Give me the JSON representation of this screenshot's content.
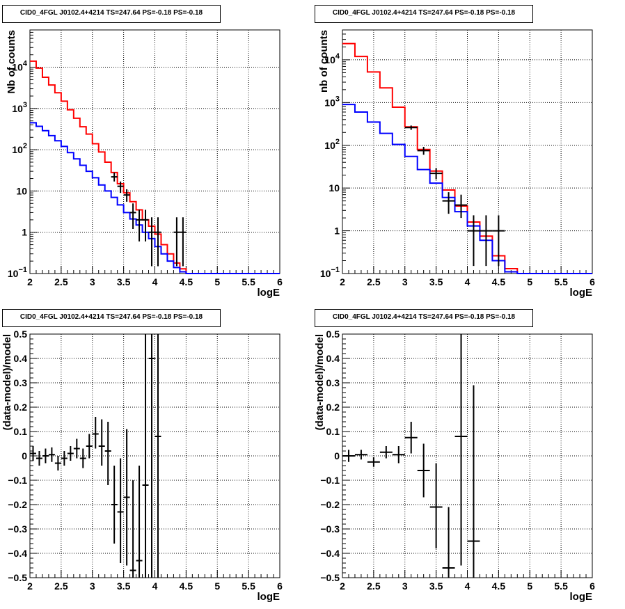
{
  "chart_data": [
    {
      "type": "line",
      "id": "top-left",
      "title": "CID0_4FGL J0102.4+4214 TS=247.64 PS=-0.18 PS=-0.18",
      "xlabel": "logE",
      "ylabel": "Nb of counts",
      "xlim": [
        2,
        6
      ],
      "ylim": [
        0.1,
        80000
      ],
      "yscale": "log",
      "grid": true,
      "xticks": [
        "2",
        "2.5",
        "3",
        "3.5",
        "4",
        "4.5",
        "5",
        "5.5",
        "6"
      ],
      "yticks": [
        {
          "v": 0.1,
          "base": "10",
          "exp": "−1"
        },
        {
          "v": 1,
          "label": "1"
        },
        {
          "v": 10,
          "label": "10"
        },
        {
          "v": 100,
          "base": "10",
          "exp": "2"
        },
        {
          "v": 1000,
          "base": "10",
          "exp": "3"
        },
        {
          "v": 10000,
          "base": "10",
          "exp": "4"
        }
      ],
      "series": [
        {
          "color": "#ff0000",
          "kind": "step",
          "edges": [
            2,
            2.1,
            2.2,
            2.3,
            2.4,
            2.5,
            2.6,
            2.7,
            2.8,
            2.9,
            3.0,
            3.1,
            3.2,
            3.3,
            3.4,
            3.5,
            3.6,
            3.7,
            3.8,
            3.9,
            4.0,
            4.1,
            4.2,
            4.3,
            4.4,
            4.5,
            4.6,
            4.7,
            4.8,
            4.9,
            5.0,
            5.1,
            5.2,
            5.3,
            5.4,
            5.5,
            5.6,
            5.7,
            5.8,
            5.9,
            6.0
          ],
          "values": [
            14000,
            9500,
            5700,
            3700,
            2400,
            1500,
            930,
            580,
            360,
            240,
            140,
            88,
            50,
            28,
            15,
            9,
            5.5,
            3.5,
            2.0,
            1.4,
            0.9,
            0.5,
            0.3,
            0.18,
            0.13,
            0.1,
            0.1,
            0.1,
            0.1,
            0.1,
            0.1,
            0.1,
            0.1,
            0.1,
            0.1,
            0.1,
            0.1,
            0.1,
            0.1,
            0.1
          ]
        },
        {
          "color": "#0000ff",
          "kind": "step",
          "edges": [
            2,
            2.1,
            2.2,
            2.3,
            2.4,
            2.5,
            2.6,
            2.7,
            2.8,
            2.9,
            3.0,
            3.1,
            3.2,
            3.3,
            3.4,
            3.5,
            3.6,
            3.7,
            3.8,
            3.9,
            4.0,
            4.1,
            4.2,
            4.3,
            4.4,
            4.5,
            4.6,
            4.7,
            4.8,
            4.9,
            5.0,
            5.1,
            5.2,
            5.3,
            5.4,
            5.5,
            5.6,
            5.7,
            5.8,
            5.9,
            6.0
          ],
          "values": [
            450,
            370,
            290,
            220,
            165,
            120,
            85,
            60,
            42,
            30,
            21,
            14,
            10,
            7,
            4.6,
            3.0,
            2.1,
            1.5,
            1.0,
            0.7,
            0.45,
            0.3,
            0.2,
            0.14,
            0.11,
            0.1,
            0.1,
            0.1,
            0.1,
            0.1,
            0.1,
            0.1,
            0.1,
            0.1,
            0.1,
            0.1,
            0.1,
            0.1,
            0.1,
            0.1
          ]
        },
        {
          "color": "#000000",
          "kind": "errorbar",
          "points": [
            {
              "x": 3.35,
              "y": 22,
              "lo": 17,
              "hi": 28,
              "xerr": 0.05
            },
            {
              "x": 3.45,
              "y": 13,
              "lo": 9,
              "hi": 17,
              "xerr": 0.05
            },
            {
              "x": 3.55,
              "y": 8,
              "lo": 5.5,
              "hi": 11,
              "xerr": 0.05
            },
            {
              "x": 3.65,
              "y": 3,
              "lo": 1.2,
              "hi": 5,
              "xerr": 0.05
            },
            {
              "x": 3.75,
              "y": 2,
              "lo": 0.6,
              "hi": 3.5,
              "xerr": 0.05
            },
            {
              "x": 3.85,
              "y": 2,
              "lo": 0.6,
              "hi": 3.5,
              "xerr": 0.05
            },
            {
              "x": 3.95,
              "y": 1,
              "lo": 0.15,
              "hi": 2.3,
              "xerr": 0.05
            },
            {
              "x": 4.05,
              "y": 1,
              "lo": 0.15,
              "hi": 2.3,
              "xerr": 0.05
            },
            {
              "x": 4.35,
              "y": 1,
              "lo": 0.15,
              "hi": 2.3,
              "xerr": 0.05
            },
            {
              "x": 4.45,
              "y": 1,
              "lo": 0.15,
              "hi": 2.3,
              "xerr": 0.05
            }
          ]
        }
      ]
    },
    {
      "type": "line",
      "id": "top-right",
      "title": "CID0_4FGL J0102.4+4214 TS=247.64 PS=-0.18 PS=-0.18",
      "xlabel": "logE",
      "ylabel": "nb of counts",
      "xlim": [
        2,
        6
      ],
      "ylim": [
        0.1,
        50000
      ],
      "yscale": "log",
      "grid": true,
      "xticks": [
        "2",
        "2.5",
        "3",
        "3.5",
        "4",
        "4.5",
        "5",
        "5.5",
        "6"
      ],
      "yticks": [
        {
          "v": 0.1,
          "base": "10",
          "exp": "−1"
        },
        {
          "v": 1,
          "label": "1"
        },
        {
          "v": 10,
          "label": "10"
        },
        {
          "v": 100,
          "base": "10",
          "exp": "2"
        },
        {
          "v": 1000,
          "base": "10",
          "exp": "3"
        },
        {
          "v": 10000,
          "base": "10",
          "exp": "4"
        }
      ],
      "series": [
        {
          "color": "#ff0000",
          "kind": "step",
          "edges": [
            2,
            2.2,
            2.4,
            2.6,
            2.8,
            3.0,
            3.2,
            3.4,
            3.6,
            3.8,
            4.0,
            4.2,
            4.4,
            4.6,
            4.8,
            5.0,
            5.2,
            5.4,
            5.6,
            5.8,
            6.0
          ],
          "values": [
            24000,
            12000,
            5200,
            2200,
            780,
            270,
            80,
            25,
            9,
            3.8,
            1.6,
            0.75,
            0.26,
            0.13,
            0.1,
            0.1,
            0.1,
            0.1,
            0.1,
            0.1
          ]
        },
        {
          "color": "#0000ff",
          "kind": "step",
          "edges": [
            2,
            2.2,
            2.4,
            2.6,
            2.8,
            3.0,
            3.2,
            3.4,
            3.6,
            3.8,
            4.0,
            4.2,
            4.4,
            4.6,
            4.8,
            5.0,
            5.2,
            5.4,
            5.6,
            5.8,
            6.0
          ],
          "values": [
            900,
            600,
            350,
            190,
            105,
            55,
            27,
            13,
            6,
            2.8,
            1.3,
            0.6,
            0.2,
            0.11,
            0.1,
            0.1,
            0.1,
            0.1,
            0.1,
            0.1
          ]
        },
        {
          "color": "#000000",
          "kind": "errorbar",
          "points": [
            {
              "x": 3.1,
              "y": 260,
              "lo": 230,
              "hi": 290,
              "xerr": 0.1
            },
            {
              "x": 3.3,
              "y": 75,
              "lo": 60,
              "hi": 92,
              "xerr": 0.1
            },
            {
              "x": 3.5,
              "y": 22,
              "lo": 16,
              "hi": 29,
              "xerr": 0.1
            },
            {
              "x": 3.7,
              "y": 5,
              "lo": 2.5,
              "hi": 8,
              "xerr": 0.1
            },
            {
              "x": 3.9,
              "y": 4,
              "lo": 2,
              "hi": 7,
              "xerr": 0.1
            },
            {
              "x": 4.1,
              "y": 1,
              "lo": 0.15,
              "hi": 2.3,
              "xerr": 0.1
            },
            {
              "x": 4.3,
              "y": 1,
              "lo": 0.15,
              "hi": 2.3,
              "xerr": 0.1
            },
            {
              "x": 4.5,
              "y": 1,
              "lo": 0.15,
              "hi": 2.3,
              "xerr": 0.1
            }
          ]
        }
      ]
    },
    {
      "type": "scatter",
      "id": "bottom-left",
      "title": "CID0_4FGL J0102.4+4214 TS=247.64 PS=-0.18 PS=-0.18",
      "xlabel": "logE",
      "ylabel": "(data-model)/model",
      "xlim": [
        2,
        6
      ],
      "ylim": [
        -0.5,
        0.5
      ],
      "yscale": "linear",
      "grid": true,
      "xticks": [
        "2",
        "2.5",
        "3",
        "3.5",
        "4",
        "4.5",
        "5",
        "5.5",
        "6"
      ],
      "yticks": [
        "-0.5",
        "-0.4",
        "-0.3",
        "-0.2",
        "-0.1",
        "0",
        "0.1",
        "0.2",
        "0.3",
        "0.4",
        "0.5"
      ],
      "series": [
        {
          "color": "#000000",
          "kind": "errorbar",
          "points": [
            {
              "x": 2.05,
              "y": 0.01,
              "lo": -0.02,
              "hi": 0.04,
              "xerr": 0.05
            },
            {
              "x": 2.15,
              "y": -0.01,
              "lo": -0.04,
              "hi": 0.02,
              "xerr": 0.05
            },
            {
              "x": 2.25,
              "y": 0.0,
              "lo": -0.03,
              "hi": 0.03,
              "xerr": 0.05
            },
            {
              "x": 2.35,
              "y": 0.005,
              "lo": -0.025,
              "hi": 0.035,
              "xerr": 0.05
            },
            {
              "x": 2.45,
              "y": -0.03,
              "lo": -0.06,
              "hi": 0.0,
              "xerr": 0.05
            },
            {
              "x": 2.55,
              "y": -0.01,
              "lo": -0.04,
              "hi": 0.02,
              "xerr": 0.05
            },
            {
              "x": 2.65,
              "y": 0.01,
              "lo": -0.02,
              "hi": 0.04,
              "xerr": 0.05
            },
            {
              "x": 2.75,
              "y": 0.03,
              "lo": -0.01,
              "hi": 0.07,
              "xerr": 0.05
            },
            {
              "x": 2.85,
              "y": -0.01,
              "lo": -0.05,
              "hi": 0.03,
              "xerr": 0.05
            },
            {
              "x": 2.95,
              "y": 0.04,
              "lo": -0.01,
              "hi": 0.09,
              "xerr": 0.05
            },
            {
              "x": 3.05,
              "y": 0.09,
              "lo": 0.03,
              "hi": 0.16,
              "xerr": 0.05
            },
            {
              "x": 3.15,
              "y": 0.04,
              "lo": -0.04,
              "hi": 0.15,
              "xerr": 0.05
            },
            {
              "x": 3.25,
              "y": 0.02,
              "lo": -0.12,
              "hi": 0.14,
              "xerr": 0.05
            },
            {
              "x": 3.35,
              "y": -0.2,
              "lo": -0.36,
              "hi": -0.04,
              "xerr": 0.05
            },
            {
              "x": 3.45,
              "y": -0.23,
              "lo": -0.44,
              "hi": -0.01,
              "xerr": 0.05
            },
            {
              "x": 3.55,
              "y": -0.17,
              "lo": -0.45,
              "hi": 0.11,
              "xerr": 0.05
            },
            {
              "x": 3.65,
              "y": -0.47,
              "lo": -0.5,
              "hi": -0.1,
              "xerr": 0.05
            },
            {
              "x": 3.75,
              "y": -0.43,
              "lo": -0.5,
              "hi": -0.04,
              "xerr": 0.05
            },
            {
              "x": 3.85,
              "y": -0.12,
              "lo": -0.5,
              "hi": 0.5,
              "xerr": 0.05
            },
            {
              "x": 3.95,
              "y": 0.4,
              "lo": -0.5,
              "hi": 0.5,
              "xerr": 0.05
            },
            {
              "x": 4.05,
              "y": 0.08,
              "lo": -0.5,
              "hi": 0.5,
              "xerr": 0.05
            }
          ]
        }
      ]
    },
    {
      "type": "scatter",
      "id": "bottom-right",
      "title": "CID0_4FGL J0102.4+4214 TS=247.64 PS=-0.18 PS=-0.18",
      "xlabel": "logE",
      "ylabel": "(data-model)/model",
      "xlim": [
        2,
        6
      ],
      "ylim": [
        -0.5,
        0.5
      ],
      "yscale": "linear",
      "grid": true,
      "xticks": [
        "2",
        "2.5",
        "3",
        "3.5",
        "4",
        "4.5",
        "5",
        "5.5",
        "6"
      ],
      "yticks": [
        "-0.5",
        "-0.4",
        "-0.3",
        "-0.2",
        "-0.1",
        "0",
        "0.1",
        "0.2",
        "0.3",
        "0.4",
        "0.5"
      ],
      "series": [
        {
          "color": "#000000",
          "kind": "errorbar",
          "points": [
            {
              "x": 2.1,
              "y": 0.0,
              "lo": -0.025,
              "hi": 0.025,
              "xerr": 0.1
            },
            {
              "x": 2.3,
              "y": 0.005,
              "lo": -0.015,
              "hi": 0.025,
              "xerr": 0.1
            },
            {
              "x": 2.5,
              "y": -0.025,
              "lo": -0.045,
              "hi": -0.005,
              "xerr": 0.1
            },
            {
              "x": 2.7,
              "y": 0.015,
              "lo": -0.01,
              "hi": 0.04,
              "xerr": 0.1
            },
            {
              "x": 2.9,
              "y": 0.005,
              "lo": -0.03,
              "hi": 0.04,
              "xerr": 0.1
            },
            {
              "x": 3.1,
              "y": 0.075,
              "lo": 0.01,
              "hi": 0.14,
              "xerr": 0.1
            },
            {
              "x": 3.3,
              "y": -0.06,
              "lo": -0.17,
              "hi": 0.05,
              "xerr": 0.1
            },
            {
              "x": 3.5,
              "y": -0.21,
              "lo": -0.38,
              "hi": -0.03,
              "xerr": 0.1
            },
            {
              "x": 3.7,
              "y": -0.46,
              "lo": -0.5,
              "hi": -0.21,
              "xerr": 0.1
            },
            {
              "x": 3.9,
              "y": 0.08,
              "lo": -0.45,
              "hi": 0.5,
              "xerr": 0.1
            },
            {
              "x": 4.1,
              "y": -0.35,
              "lo": -0.5,
              "hi": 0.29,
              "xerr": 0.1
            }
          ]
        }
      ]
    }
  ]
}
